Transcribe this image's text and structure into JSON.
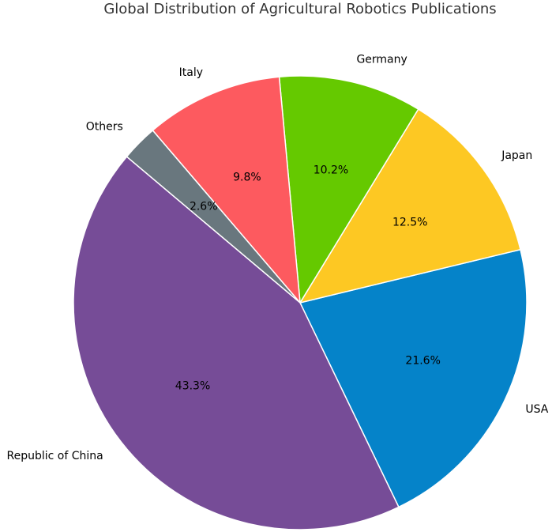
{
  "chart_data": {
    "type": "pie",
    "title": "Global Distribution of Agricultural Robotics Publications",
    "categories": [
      "USA",
      "Japan",
      "Germany",
      "Italy",
      "Others",
      "Republic of China"
    ],
    "values": [
      21.6,
      12.5,
      10.2,
      9.8,
      2.6,
      43.3
    ],
    "value_labels": [
      "21.6%",
      "12.5%",
      "10.2%",
      "9.8%",
      "2.6%",
      "43.3%"
    ],
    "colors": [
      "#0583c9",
      "#fdc823",
      "#65c900",
      "#fd5a5f",
      "#69777e",
      "#764c97"
    ]
  }
}
